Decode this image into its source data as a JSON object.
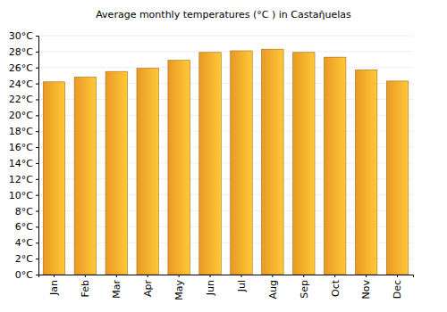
{
  "chart_data": {
    "type": "bar",
    "title": "Average monthly temperatures (°C ) in Castaῆuelas",
    "categories": [
      "Jan",
      "Feb",
      "Mar",
      "Apr",
      "May",
      "Jun",
      "Jul",
      "Aug",
      "Sep",
      "Oct",
      "Nov",
      "Dec"
    ],
    "values": [
      24.2,
      24.8,
      25.5,
      25.9,
      26.9,
      27.9,
      28.1,
      28.3,
      27.9,
      27.3,
      25.7,
      24.3
    ],
    "color": "#ffa726",
    "ylim": [
      0,
      30
    ],
    "yticks": [
      {
        "value": 0,
        "label": "0°C"
      },
      {
        "value": 2,
        "label": "2°C"
      },
      {
        "value": 4,
        "label": "4°C"
      },
      {
        "value": 6,
        "label": "6°C"
      },
      {
        "value": 8,
        "label": "8°C"
      },
      {
        "value": 10,
        "label": "10°C"
      },
      {
        "value": 12,
        "label": "12°C"
      },
      {
        "value": 14,
        "label": "14°C"
      },
      {
        "value": 16,
        "label": "16°C"
      },
      {
        "value": 18,
        "label": "18°C"
      },
      {
        "value": 20,
        "label": "20°C"
      },
      {
        "value": 22,
        "label": "22°C"
      },
      {
        "value": 24,
        "label": "24°C"
      },
      {
        "value": 26,
        "label": "26°C"
      },
      {
        "value": 28,
        "label": "28°C"
      },
      {
        "value": 30,
        "label": "30°C"
      }
    ],
    "grid": true
  }
}
